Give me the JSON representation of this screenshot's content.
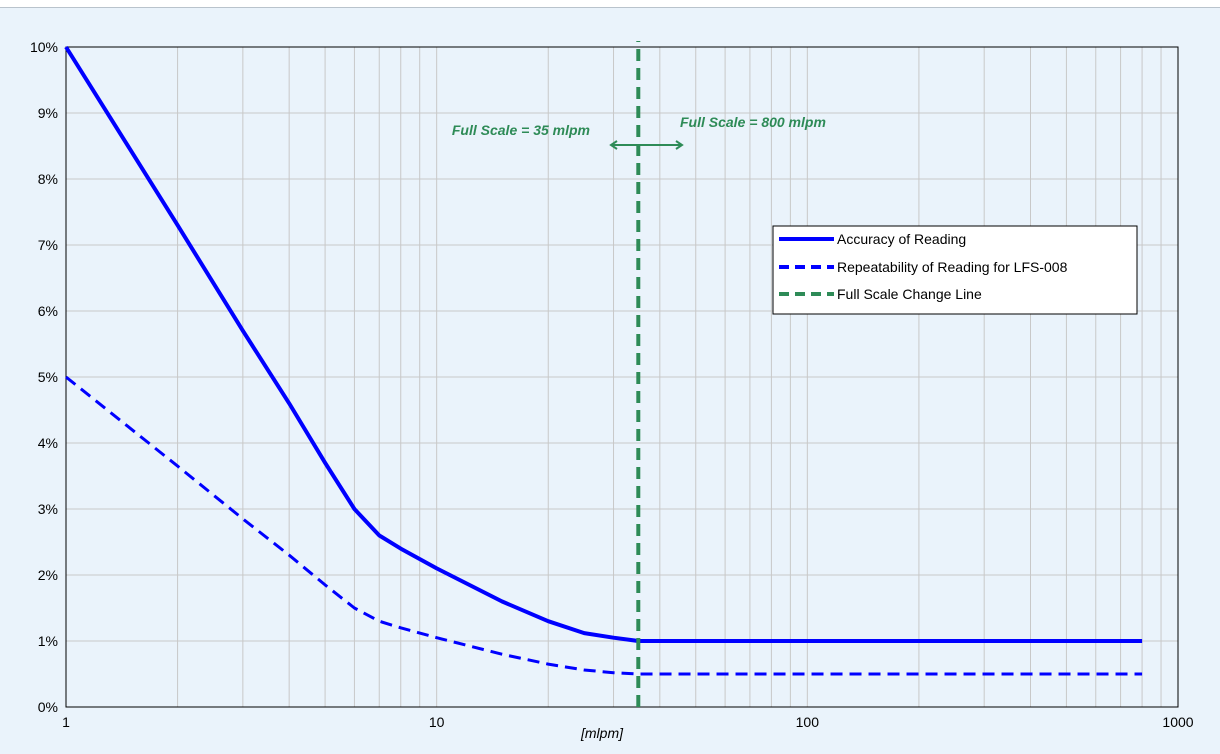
{
  "colors": {
    "series_blue": "#0000ff",
    "change_line_green": "#2e8b57",
    "background": "#eaf3fb",
    "grid": "#c8c8c8"
  },
  "chart_data": {
    "type": "line",
    "title": "",
    "xlabel": "[mlpm]",
    "ylabel": "",
    "x_scale": "log",
    "xlim": [
      1,
      1000
    ],
    "ylim": [
      0,
      10
    ],
    "x_ticks": [
      "1",
      "10",
      "100",
      "1000"
    ],
    "y_ticks": [
      "0%",
      "1%",
      "2%",
      "3%",
      "4%",
      "5%",
      "6%",
      "7%",
      "8%",
      "9%",
      "10%"
    ],
    "grid": true,
    "legend_position": "right",
    "series": [
      {
        "name": "Accuracy of Reading",
        "style": "solid",
        "x": [
          1,
          2,
          3,
          4,
          5,
          6,
          7,
          8,
          10,
          15,
          20,
          25,
          30,
          35,
          40,
          50,
          100,
          200,
          500,
          800
        ],
        "y": [
          10.0,
          7.3,
          5.7,
          4.6,
          3.7,
          3.0,
          2.6,
          2.4,
          2.1,
          1.6,
          1.3,
          1.12,
          1.05,
          1.0,
          1.0,
          1.0,
          1.0,
          1.0,
          1.0,
          1.0
        ]
      },
      {
        "name": "Repeatability of Reading for LFS-008",
        "style": "dashed",
        "x": [
          1,
          2,
          3,
          4,
          5,
          6,
          7,
          8,
          10,
          15,
          20,
          25,
          30,
          35,
          40,
          50,
          100,
          200,
          500,
          800
        ],
        "y": [
          5.0,
          3.65,
          2.85,
          2.3,
          1.85,
          1.5,
          1.3,
          1.2,
          1.05,
          0.8,
          0.65,
          0.56,
          0.52,
          0.5,
          0.5,
          0.5,
          0.5,
          0.5,
          0.5,
          0.5
        ]
      },
      {
        "name": "Full Scale Change Line",
        "style": "dashed",
        "x": [
          35,
          35
        ],
        "y": [
          0,
          10.5
        ]
      }
    ],
    "annotations": [
      {
        "text": "Full Scale = 35 mlpm",
        "side": "left"
      },
      {
        "text": "Full Scale = 800 mlpm",
        "side": "right"
      }
    ]
  }
}
